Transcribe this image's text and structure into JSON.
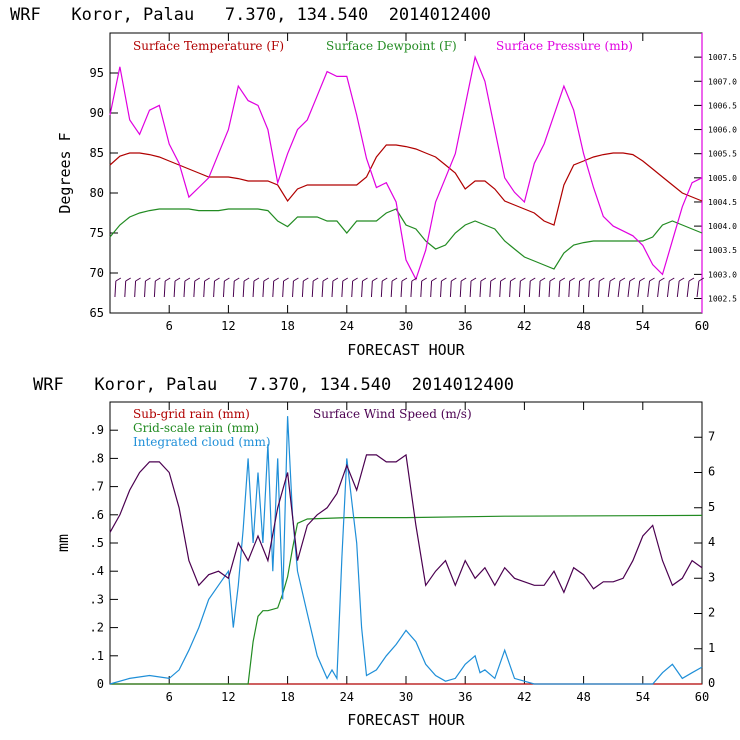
{
  "chart_data": [
    {
      "type": "line",
      "title": "WRF   Koror, Palau   7.370, 134.540  2014012400",
      "xlabel": "FORECAST HOUR",
      "ylabel": "Degrees F",
      "xlim": [
        0,
        60
      ],
      "ylim": [
        65,
        100
      ],
      "y2lim": [
        1002.2,
        1008.0
      ],
      "x_ticks": [
        6,
        12,
        18,
        24,
        30,
        36,
        42,
        48,
        54,
        60
      ],
      "y_ticks": [
        65,
        70,
        75,
        80,
        85,
        90,
        95
      ],
      "y2_ticks": [
        "1002.5",
        "1003.0",
        "1003.5",
        "1004.0",
        "1004.5",
        "1005.0",
        "1005.5",
        "1006.0",
        "1006.5",
        "1007.0",
        "1007.5"
      ],
      "legend_placement": "top",
      "colors": {
        "temp": "#b00000",
        "dew": "#228b22",
        "pressure": "#e000e0",
        "wind_barb": "#4b0050"
      },
      "series": [
        {
          "name": "Surface Temperature (F)",
          "axis": "left",
          "x": [
            0,
            1,
            2,
            3,
            4,
            5,
            6,
            7,
            8,
            9,
            10,
            11,
            12,
            13,
            14,
            15,
            16,
            17,
            18,
            19,
            20,
            21,
            22,
            23,
            24,
            25,
            26,
            27,
            28,
            29,
            30,
            31,
            32,
            33,
            34,
            35,
            36,
            37,
            38,
            39,
            40,
            41,
            42,
            43,
            44,
            45,
            46,
            47,
            48,
            49,
            50,
            51,
            52,
            53,
            54,
            55,
            56,
            57,
            58,
            59,
            60
          ],
          "values": [
            83.5,
            84.6,
            85.0,
            85.0,
            84.8,
            84.5,
            84.0,
            83.5,
            83.0,
            82.5,
            82.0,
            82.0,
            82.0,
            81.8,
            81.5,
            81.5,
            81.5,
            81.0,
            79.0,
            80.5,
            81.0,
            81.0,
            81.0,
            81.0,
            81.0,
            81.0,
            82.0,
            84.5,
            86.0,
            86.0,
            85.8,
            85.5,
            85.0,
            84.5,
            83.5,
            82.5,
            80.5,
            81.5,
            81.5,
            80.5,
            79.0,
            78.5,
            78.0,
            77.5,
            76.5,
            76.0,
            81.0,
            83.5,
            84.0,
            84.5,
            84.8,
            85.0,
            85.0,
            84.8,
            84.0,
            83.0,
            82.0,
            81.0,
            80.0,
            79.5,
            79.0
          ]
        },
        {
          "name": "Surface Dewpoint (F)",
          "axis": "left",
          "x": [
            0,
            1,
            2,
            3,
            4,
            5,
            6,
            7,
            8,
            9,
            10,
            11,
            12,
            13,
            14,
            15,
            16,
            17,
            18,
            19,
            20,
            21,
            22,
            23,
            24,
            25,
            26,
            27,
            28,
            29,
            30,
            31,
            32,
            33,
            34,
            35,
            36,
            37,
            38,
            39,
            40,
            41,
            42,
            43,
            44,
            45,
            46,
            47,
            48,
            49,
            50,
            51,
            52,
            53,
            54,
            55,
            56,
            57,
            58,
            59,
            60
          ],
          "values": [
            74.5,
            76.0,
            77.0,
            77.5,
            77.8,
            78.0,
            78.0,
            78.0,
            78.0,
            77.8,
            77.8,
            77.8,
            78.0,
            78.0,
            78.0,
            78.0,
            77.8,
            76.5,
            75.8,
            77.0,
            77.0,
            77.0,
            76.5,
            76.5,
            75.0,
            76.5,
            76.5,
            76.5,
            77.5,
            78.0,
            76.0,
            75.5,
            74.0,
            73.0,
            73.5,
            75.0,
            76.0,
            76.5,
            76.0,
            75.5,
            74.0,
            73.0,
            72.0,
            71.5,
            71.0,
            70.5,
            72.5,
            73.5,
            73.8,
            74.0,
            74.0,
            74.0,
            74.0,
            74.0,
            74.0,
            74.5,
            76.0,
            76.5,
            76.0,
            75.5,
            75.0
          ]
        },
        {
          "name": "Surface Pressure (mb)",
          "axis": "right",
          "x": [
            0,
            1,
            2,
            3,
            4,
            5,
            6,
            7,
            8,
            9,
            10,
            11,
            12,
            13,
            14,
            15,
            16,
            17,
            18,
            19,
            20,
            21,
            22,
            23,
            24,
            25,
            26,
            27,
            28,
            29,
            30,
            31,
            32,
            33,
            34,
            35,
            36,
            37,
            38,
            39,
            40,
            41,
            42,
            43,
            44,
            45,
            46,
            47,
            48,
            49,
            50,
            51,
            52,
            53,
            54,
            55,
            56,
            57,
            58,
            59,
            60
          ],
          "values": [
            1006.3,
            1007.3,
            1006.2,
            1005.9,
            1006.4,
            1006.5,
            1005.7,
            1005.3,
            1004.6,
            1004.8,
            1005.0,
            1005.5,
            1006.0,
            1006.9,
            1006.6,
            1006.5,
            1006.0,
            1004.9,
            1005.5,
            1006.0,
            1006.2,
            1006.7,
            1007.2,
            1007.1,
            1007.1,
            1006.3,
            1005.4,
            1004.8,
            1004.9,
            1004.5,
            1003.3,
            1002.9,
            1003.5,
            1004.5,
            1005.0,
            1005.5,
            1006.5,
            1007.5,
            1007.0,
            1006.0,
            1005.0,
            1004.7,
            1004.5,
            1005.3,
            1005.7,
            1006.3,
            1006.9,
            1006.4,
            1005.5,
            1004.8,
            1004.2,
            1004.0,
            1003.9,
            1003.8,
            1003.6,
            1003.2,
            1003.0,
            1003.7,
            1004.4,
            1004.9,
            1005.0
          ]
        }
      ],
      "legend": [
        "Surface Temperature (F)",
        "Surface Dewpoint (F)",
        "Surface Pressure (mb)"
      ]
    },
    {
      "type": "line",
      "title": "WRF   Koror, Palau   7.370, 134.540  2014012400",
      "xlabel": "FORECAST HOUR",
      "ylabel": "mm",
      "xlim": [
        0,
        60
      ],
      "ylim": [
        0,
        1.0
      ],
      "y2lim": [
        0,
        8
      ],
      "x_ticks": [
        6,
        12,
        18,
        24,
        30,
        36,
        42,
        48,
        54,
        60
      ],
      "y_ticks": [
        "0",
        ".1",
        ".2",
        ".3",
        ".4",
        ".5",
        ".6",
        ".7",
        ".8",
        ".9"
      ],
      "y2_ticks": [
        "0",
        "1",
        "2",
        "3",
        "4",
        "5",
        "6",
        "7"
      ],
      "legend_placement": "top-left",
      "colors": {
        "subgrid": "#b00000",
        "gridscale": "#228b22",
        "cloud": "#1f8fd8",
        "wind": "#4b0050"
      },
      "series": [
        {
          "name": "Sub-grid rain (mm)",
          "axis": "left",
          "x": [
            0,
            60
          ],
          "values": [
            0,
            0
          ]
        },
        {
          "name": "Grid-scale rain (mm)",
          "axis": "left",
          "x": [
            0,
            14,
            14.5,
            15,
            15.5,
            16,
            17,
            17.5,
            18,
            18.5,
            19,
            20,
            24,
            30,
            40,
            60
          ],
          "values": [
            0,
            0,
            0.15,
            0.24,
            0.26,
            0.26,
            0.27,
            0.32,
            0.38,
            0.48,
            0.57,
            0.585,
            0.59,
            0.59,
            0.595,
            0.598
          ]
        },
        {
          "name": "Integrated cloud (mm)",
          "axis": "left",
          "x": [
            0,
            2,
            4,
            6,
            7,
            8,
            9,
            10,
            11,
            12,
            12.5,
            13,
            13.5,
            14,
            14.5,
            15,
            15.5,
            16,
            16.5,
            17,
            17.5,
            18,
            18.5,
            19,
            20,
            21,
            22,
            22.5,
            23,
            23.5,
            24,
            24.5,
            25,
            25.5,
            26,
            27,
            28,
            29,
            30,
            31,
            32,
            33,
            34,
            35,
            36,
            37,
            37.5,
            38,
            39,
            40,
            41,
            42,
            43,
            44,
            46,
            48,
            50,
            52,
            54,
            55,
            56,
            57,
            58,
            59,
            60
          ],
          "values": [
            0,
            0.02,
            0.03,
            0.02,
            0.05,
            0.12,
            0.2,
            0.3,
            0.35,
            0.4,
            0.2,
            0.35,
            0.55,
            0.8,
            0.5,
            0.75,
            0.5,
            0.85,
            0.4,
            0.8,
            0.3,
            0.95,
            0.6,
            0.4,
            0.25,
            0.1,
            0.02,
            0.05,
            0.02,
            0.45,
            0.8,
            0.65,
            0.5,
            0.2,
            0.03,
            0.05,
            0.1,
            0.14,
            0.19,
            0.15,
            0.07,
            0.03,
            0.01,
            0.02,
            0.07,
            0.1,
            0.04,
            0.05,
            0.02,
            0.12,
            0.02,
            0.01,
            0.0,
            0.0,
            0.0,
            0.0,
            0.0,
            0.0,
            0.0,
            0.0,
            0.04,
            0.07,
            0.02,
            0.04,
            0.06
          ]
        },
        {
          "name": "Surface Wind Speed (m/s)",
          "axis": "right",
          "x": [
            0,
            1,
            2,
            3,
            4,
            5,
            6,
            7,
            8,
            9,
            10,
            11,
            12,
            13,
            14,
            15,
            16,
            17,
            18,
            19,
            20,
            21,
            22,
            23,
            24,
            25,
            26,
            27,
            28,
            29,
            30,
            31,
            32,
            33,
            34,
            35,
            36,
            37,
            38,
            39,
            40,
            41,
            42,
            43,
            44,
            45,
            46,
            47,
            48,
            49,
            50,
            51,
            52,
            53,
            54,
            55,
            56,
            57,
            58,
            59,
            60
          ],
          "values": [
            4.3,
            4.8,
            5.5,
            6.0,
            6.3,
            6.3,
            6.0,
            5.0,
            3.5,
            2.8,
            3.1,
            3.2,
            3.0,
            4.0,
            3.5,
            4.2,
            3.5,
            5.0,
            6.0,
            3.5,
            4.5,
            4.8,
            5.0,
            5.4,
            6.2,
            5.5,
            6.5,
            6.5,
            6.3,
            6.3,
            6.5,
            4.5,
            2.8,
            3.2,
            3.5,
            2.8,
            3.5,
            3.0,
            3.3,
            2.8,
            3.3,
            3.0,
            2.9,
            2.8,
            2.8,
            3.2,
            2.6,
            3.3,
            3.1,
            2.7,
            2.9,
            2.9,
            3.0,
            3.5,
            4.2,
            4.5,
            3.5,
            2.8,
            3.0,
            3.5,
            3.3
          ]
        }
      ],
      "legend": [
        "Sub-grid rain (mm)",
        "Surface Wind Speed (m/s)",
        "Grid-scale rain (mm)",
        "Integrated cloud (mm)"
      ]
    }
  ]
}
